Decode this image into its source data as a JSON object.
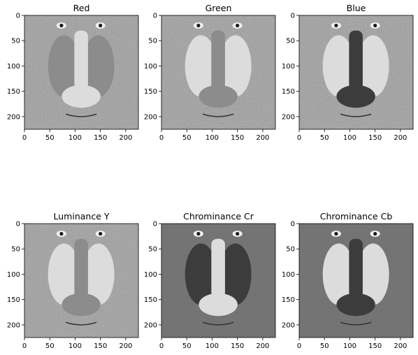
{
  "figure": {
    "background": "#ffffff",
    "image_extent": [
      0,
      225
    ],
    "colormap": "gray"
  },
  "chart_data": [
    {
      "type": "image",
      "title": "Red",
      "xticks": [
        0,
        50,
        100,
        150,
        200
      ],
      "yticks": [
        0,
        50,
        100,
        150,
        200
      ],
      "xlim": [
        0,
        225
      ],
      "ylim": [
        225,
        0
      ],
      "nose_tone": "light",
      "cheek_tone": "mid"
    },
    {
      "type": "image",
      "title": "Green",
      "xticks": [
        0,
        50,
        100,
        150,
        200
      ],
      "yticks": [
        0,
        50,
        100,
        150,
        200
      ],
      "xlim": [
        0,
        225
      ],
      "ylim": [
        225,
        0
      ],
      "nose_tone": "mid",
      "cheek_tone": "light"
    },
    {
      "type": "image",
      "title": "Blue",
      "xticks": [
        0,
        50,
        100,
        150,
        200
      ],
      "yticks": [
        0,
        50,
        100,
        150,
        200
      ],
      "xlim": [
        0,
        225
      ],
      "ylim": [
        225,
        0
      ],
      "nose_tone": "dark",
      "cheek_tone": "light"
    },
    {
      "type": "image",
      "title": "Luminance Y",
      "xticks": [
        0,
        50,
        100,
        150,
        200
      ],
      "yticks": [
        0,
        50,
        100,
        150,
        200
      ],
      "xlim": [
        0,
        225
      ],
      "ylim": [
        225,
        0
      ],
      "nose_tone": "mid",
      "cheek_tone": "light"
    },
    {
      "type": "image",
      "title": "Chrominance Cr",
      "xticks": [
        0,
        50,
        100,
        150,
        200
      ],
      "yticks": [
        0,
        50,
        100,
        150,
        200
      ],
      "xlim": [
        0,
        225
      ],
      "ylim": [
        225,
        0
      ],
      "nose_tone": "light",
      "cheek_tone": "dark"
    },
    {
      "type": "image",
      "title": "Chrominance Cb",
      "xticks": [
        0,
        50,
        100,
        150,
        200
      ],
      "yticks": [
        0,
        50,
        100,
        150,
        200
      ],
      "xlim": [
        0,
        225
      ],
      "ylim": [
        225,
        0
      ],
      "nose_tone": "dark",
      "cheek_tone": "light"
    }
  ]
}
